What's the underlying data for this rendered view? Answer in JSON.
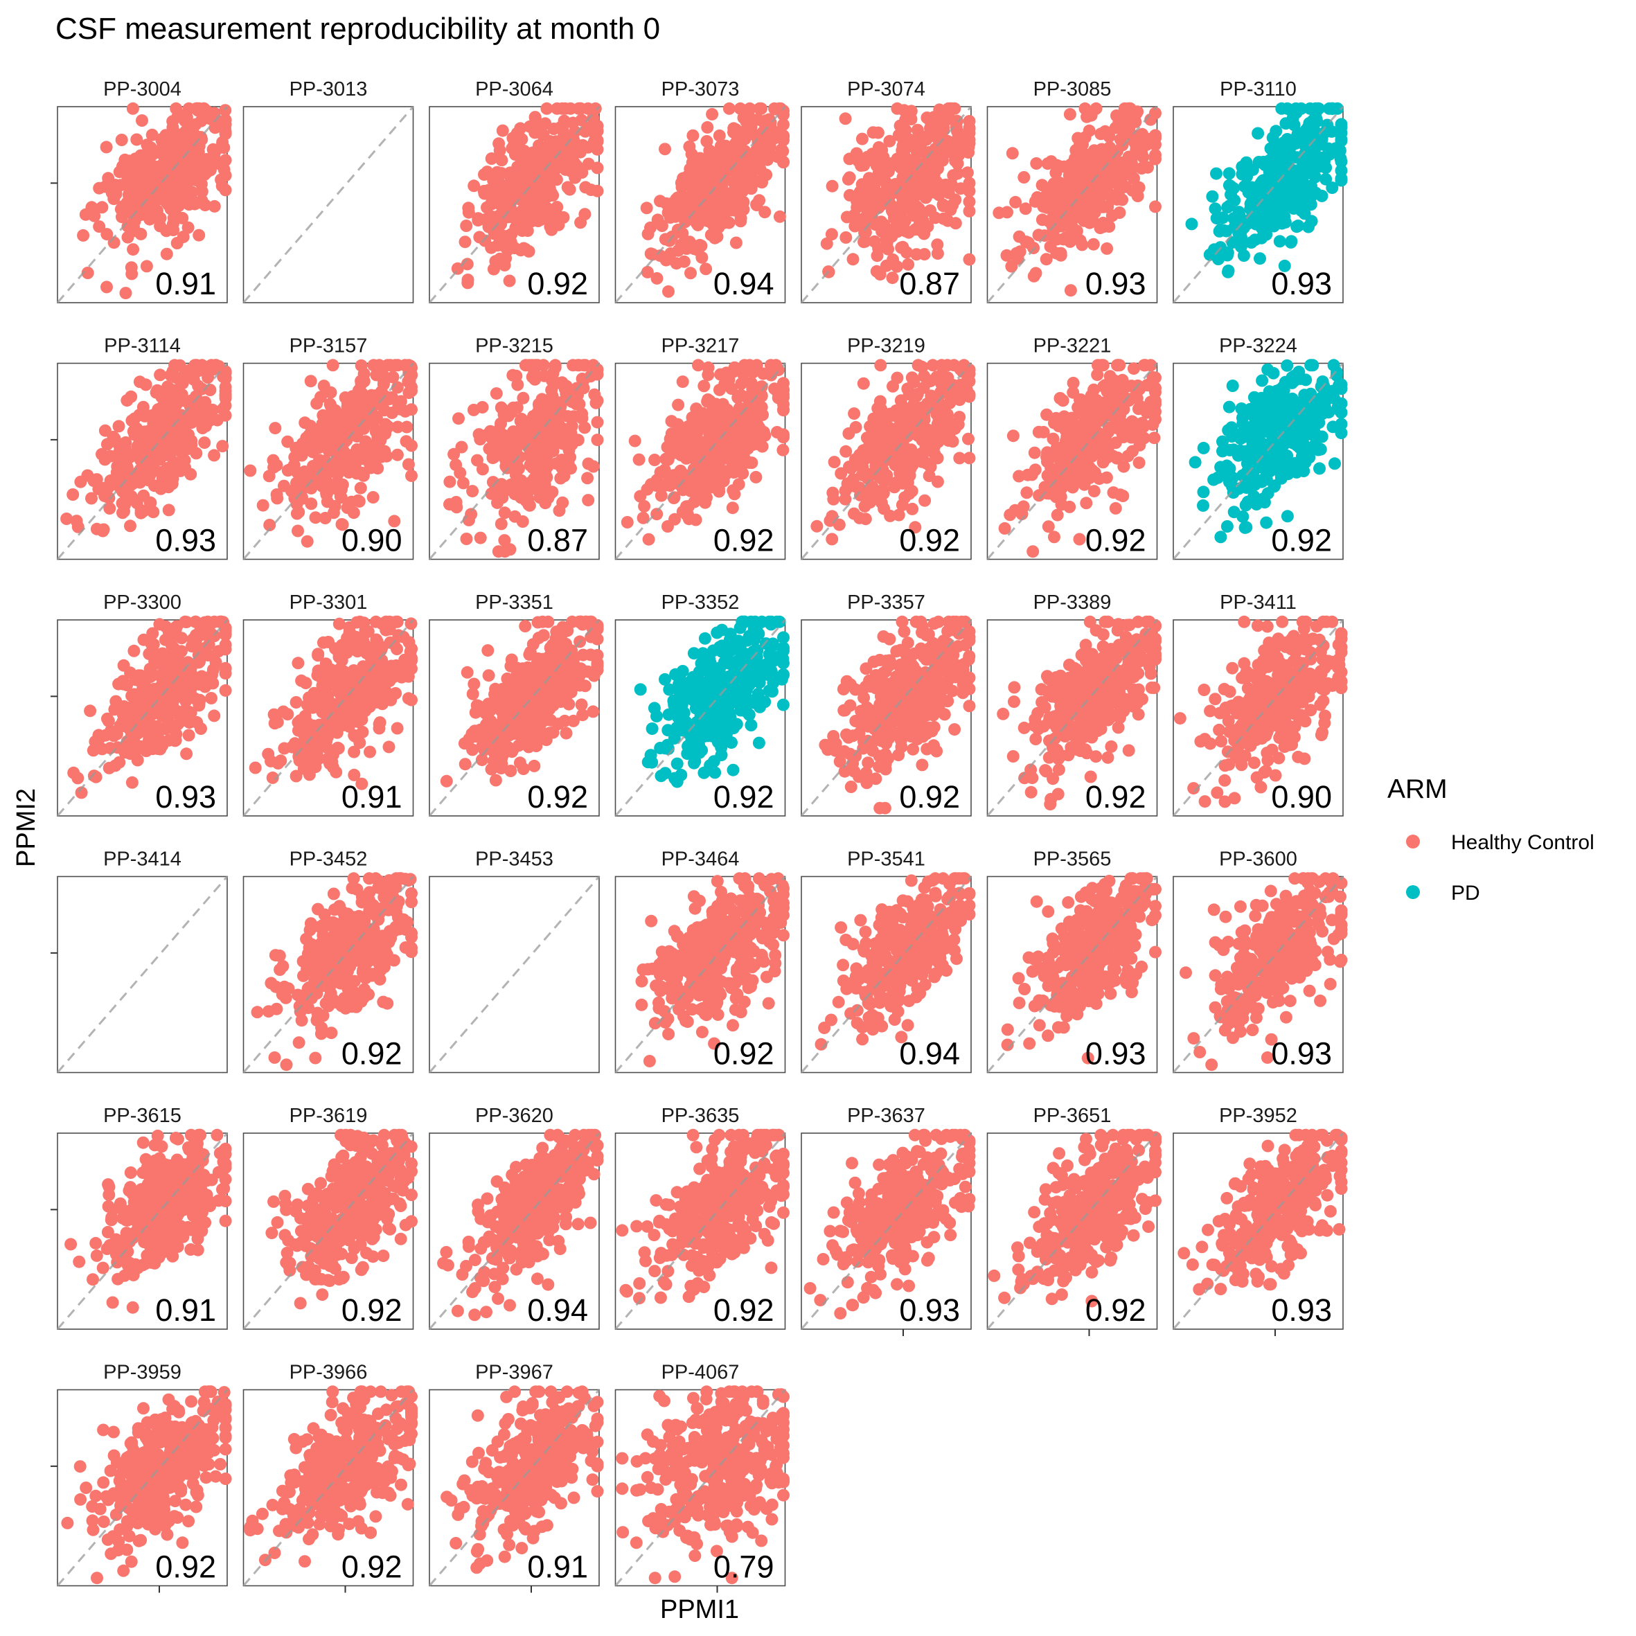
{
  "chart_data": {
    "type": "scatter",
    "title": "CSF measurement reproducibility at month 0",
    "xlabel": "PPMI1",
    "ylabel": "PPMI2",
    "reference_line": "y = x (dashed)",
    "grid": false,
    "legend": {
      "title": "ARM",
      "placement": "right",
      "entries": [
        {
          "label": "Healthy Control",
          "color": "#F8766D"
        },
        {
          "label": "PD",
          "color": "#00BFC4"
        }
      ]
    },
    "facets": [
      {
        "id": "PP-3004",
        "arm": "Healthy Control",
        "corr": "0.91"
      },
      {
        "id": "PP-3013",
        "arm": null,
        "corr": null
      },
      {
        "id": "PP-3064",
        "arm": "Healthy Control",
        "corr": "0.92"
      },
      {
        "id": "PP-3073",
        "arm": "Healthy Control",
        "corr": "0.94"
      },
      {
        "id": "PP-3074",
        "arm": "Healthy Control",
        "corr": "0.87"
      },
      {
        "id": "PP-3085",
        "arm": "Healthy Control",
        "corr": "0.93"
      },
      {
        "id": "PP-3110",
        "arm": "PD",
        "corr": "0.93"
      },
      {
        "id": "PP-3114",
        "arm": "Healthy Control",
        "corr": "0.93"
      },
      {
        "id": "PP-3157",
        "arm": "Healthy Control",
        "corr": "0.90"
      },
      {
        "id": "PP-3215",
        "arm": "Healthy Control",
        "corr": "0.87"
      },
      {
        "id": "PP-3217",
        "arm": "Healthy Control",
        "corr": "0.92"
      },
      {
        "id": "PP-3219",
        "arm": "Healthy Control",
        "corr": "0.92"
      },
      {
        "id": "PP-3221",
        "arm": "Healthy Control",
        "corr": "0.92"
      },
      {
        "id": "PP-3224",
        "arm": "PD",
        "corr": "0.92"
      },
      {
        "id": "PP-3300",
        "arm": "Healthy Control",
        "corr": "0.93"
      },
      {
        "id": "PP-3301",
        "arm": "Healthy Control",
        "corr": "0.91"
      },
      {
        "id": "PP-3351",
        "arm": "Healthy Control",
        "corr": "0.92"
      },
      {
        "id": "PP-3352",
        "arm": "PD",
        "corr": "0.92"
      },
      {
        "id": "PP-3357",
        "arm": "Healthy Control",
        "corr": "0.92"
      },
      {
        "id": "PP-3389",
        "arm": "Healthy Control",
        "corr": "0.92"
      },
      {
        "id": "PP-3411",
        "arm": "Healthy Control",
        "corr": "0.90"
      },
      {
        "id": "PP-3414",
        "arm": null,
        "corr": null
      },
      {
        "id": "PP-3452",
        "arm": "Healthy Control",
        "corr": "0.92"
      },
      {
        "id": "PP-3453",
        "arm": null,
        "corr": null
      },
      {
        "id": "PP-3464",
        "arm": "Healthy Control",
        "corr": "0.92"
      },
      {
        "id": "PP-3541",
        "arm": "Healthy Control",
        "corr": "0.94"
      },
      {
        "id": "PP-3565",
        "arm": "Healthy Control",
        "corr": "0.93"
      },
      {
        "id": "PP-3600",
        "arm": "Healthy Control",
        "corr": "0.93"
      },
      {
        "id": "PP-3615",
        "arm": "Healthy Control",
        "corr": "0.91"
      },
      {
        "id": "PP-3619",
        "arm": "Healthy Control",
        "corr": "0.92"
      },
      {
        "id": "PP-3620",
        "arm": "Healthy Control",
        "corr": "0.94"
      },
      {
        "id": "PP-3635",
        "arm": "Healthy Control",
        "corr": "0.92"
      },
      {
        "id": "PP-3637",
        "arm": "Healthy Control",
        "corr": "0.93"
      },
      {
        "id": "PP-3651",
        "arm": "Healthy Control",
        "corr": "0.92"
      },
      {
        "id": "PP-3952",
        "arm": "Healthy Control",
        "corr": "0.93"
      },
      {
        "id": "PP-3959",
        "arm": "Healthy Control",
        "corr": "0.92"
      },
      {
        "id": "PP-3966",
        "arm": "Healthy Control",
        "corr": "0.92"
      },
      {
        "id": "PP-3967",
        "arm": "Healthy Control",
        "corr": "0.91"
      },
      {
        "id": "PP-4067",
        "arm": "Healthy Control",
        "corr": "0.79"
      }
    ]
  }
}
